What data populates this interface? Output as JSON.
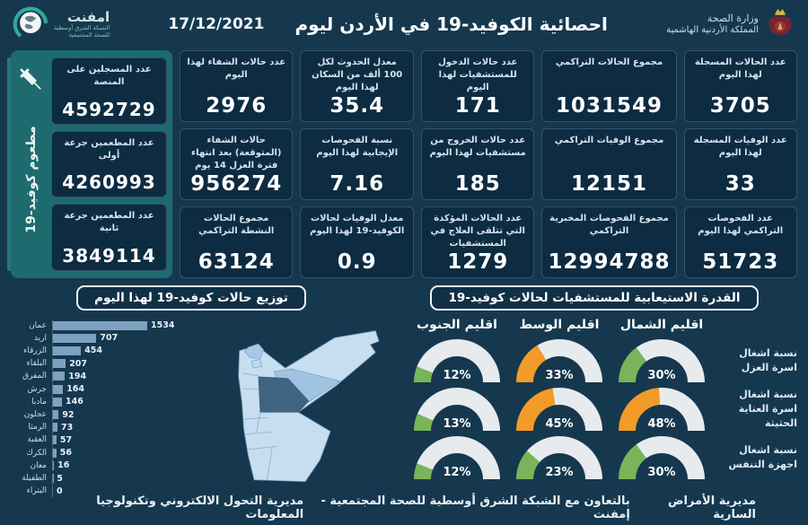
{
  "header": {
    "title": "احصائية الكوفيد-19 في الأردن ليوم",
    "date": "17/12/2021",
    "ministry": {
      "line1": "وزارة الصحة",
      "line2": "المملكة الأردنية الهاشمية"
    },
    "emphnet": {
      "name": "امفنت",
      "sub1": "الشبكة الشرق أوسطية",
      "sub2": "للصحة المجتمعية"
    }
  },
  "stats_columns": [
    {
      "cards": [
        {
          "label": "عدد الحالات المسجلة لهذا اليوم",
          "value": "3705"
        },
        {
          "label": "عدد الوفيات المسجلة لهذا اليوم",
          "value": "33"
        },
        {
          "label": "عدد الفحوصات التراكمي لهذا اليوم",
          "value": "51723"
        }
      ]
    },
    {
      "cards": [
        {
          "label": "مجموع الحالات التراكمي",
          "value": "1031549"
        },
        {
          "label": "مجموع الوفيات التراكمي",
          "value": "12151"
        },
        {
          "label": "مجموع الفحوصات المخبرية التراكمي",
          "value": "12994788"
        }
      ]
    },
    {
      "cards": [
        {
          "label": "عدد حالات الدخول للمستشفيات لهذا اليوم",
          "value": "171"
        },
        {
          "label": "عدد حالات الخروج من مستشفيات لهذا اليوم",
          "value": "185"
        },
        {
          "label": "عدد الحالات المؤكدة التي تتلقى العلاج في المستشفيات",
          "value": "1279"
        }
      ]
    },
    {
      "cards": [
        {
          "label": "معدل الحدوث لكل 100 ألف من السكان لهذا اليوم",
          "value": "35.4"
        },
        {
          "label": "نسبة الفحوصات الإيجابية لهذا اليوم",
          "value": "7.16"
        },
        {
          "label": "معدل الوفيات لحالات الكوفيد-19 لهذا اليوم",
          "value": "0.9"
        }
      ]
    },
    {
      "cards": [
        {
          "label": "عدد حالات الشفاء لهذا اليوم",
          "value": "2976"
        },
        {
          "label": "حالات الشفاء (المتوقعة) بعد انتهاء فترة العزل 14 يوم",
          "value": "956274"
        },
        {
          "label": "مجموع الحالات النشطة التراكمي",
          "value": "63124"
        }
      ]
    }
  ],
  "vaccination": {
    "side_label": "مطعوم كوفيد-19",
    "cards": [
      {
        "label": "عدد المسجلين على المنصة",
        "value": "4592729"
      },
      {
        "label": "عدد المطعمين جرعة أولى",
        "value": "4260993"
      },
      {
        "label": "عدد المطعمين جرعة ثانية",
        "value": "3849114"
      }
    ]
  },
  "chart_data": [
    {
      "type": "bar",
      "title": "توزيع حالات كوفيد-19 لهذا اليوم",
      "orientation": "horizontal",
      "categories": [
        "عمان",
        "اربد",
        "الزرقاء",
        "البلقاء",
        "المفرق",
        "جرش",
        "مادبا",
        "عجلون",
        "الرمثا",
        "العقبة",
        "الكرك",
        "معان",
        "الطفيلة",
        "البتراء"
      ],
      "values": [
        1534,
        707,
        454,
        207,
        194,
        164,
        146,
        92,
        73,
        57,
        56,
        16,
        5,
        0
      ],
      "xlim": [
        0,
        1534
      ],
      "legend": "none",
      "grid": "off"
    },
    {
      "type": "gauge-grid",
      "title": "القدرة الاستيعابية للمستشفيات لحالات كوفيد-19",
      "columns": [
        "اقليم الشمال",
        "اقليم الوسط",
        "اقليم الجنوب"
      ],
      "rows": [
        {
          "label": "نسبة اشغال اسرة العزل",
          "values": [
            30,
            33,
            12
          ],
          "colors": [
            "green",
            "orange",
            "green"
          ]
        },
        {
          "label": "نسبة اشغال اسرة العناية الحثيثة",
          "values": [
            48,
            45,
            13
          ],
          "colors": [
            "orange",
            "orange",
            "green"
          ]
        },
        {
          "label": "نسبة اشغال اجهزة التنفس",
          "values": [
            30,
            23,
            12
          ],
          "colors": [
            "green",
            "green",
            "green"
          ]
        }
      ],
      "range": [
        0,
        100
      ],
      "unit": "%"
    }
  ],
  "footer": {
    "right": "مديرية الأمراض السارية",
    "center": "بالتعاون مع الشبكة الشرق أوسطية للصحة المجتمعية - إمفنت",
    "left": "مديرية التحول الالكتروني وتكنولوجيا المعلومات"
  },
  "colors": {
    "background": "#15384f",
    "card": "#0d2b41",
    "panel_teal": "#1d6b6e",
    "gauge_green": "#79b45a",
    "gauge_orange": "#f39b28",
    "gauge_track": "#e7ebee",
    "bar": "#7da1c0",
    "map_base": "#c7def0",
    "map_highlight": "#40637f"
  }
}
